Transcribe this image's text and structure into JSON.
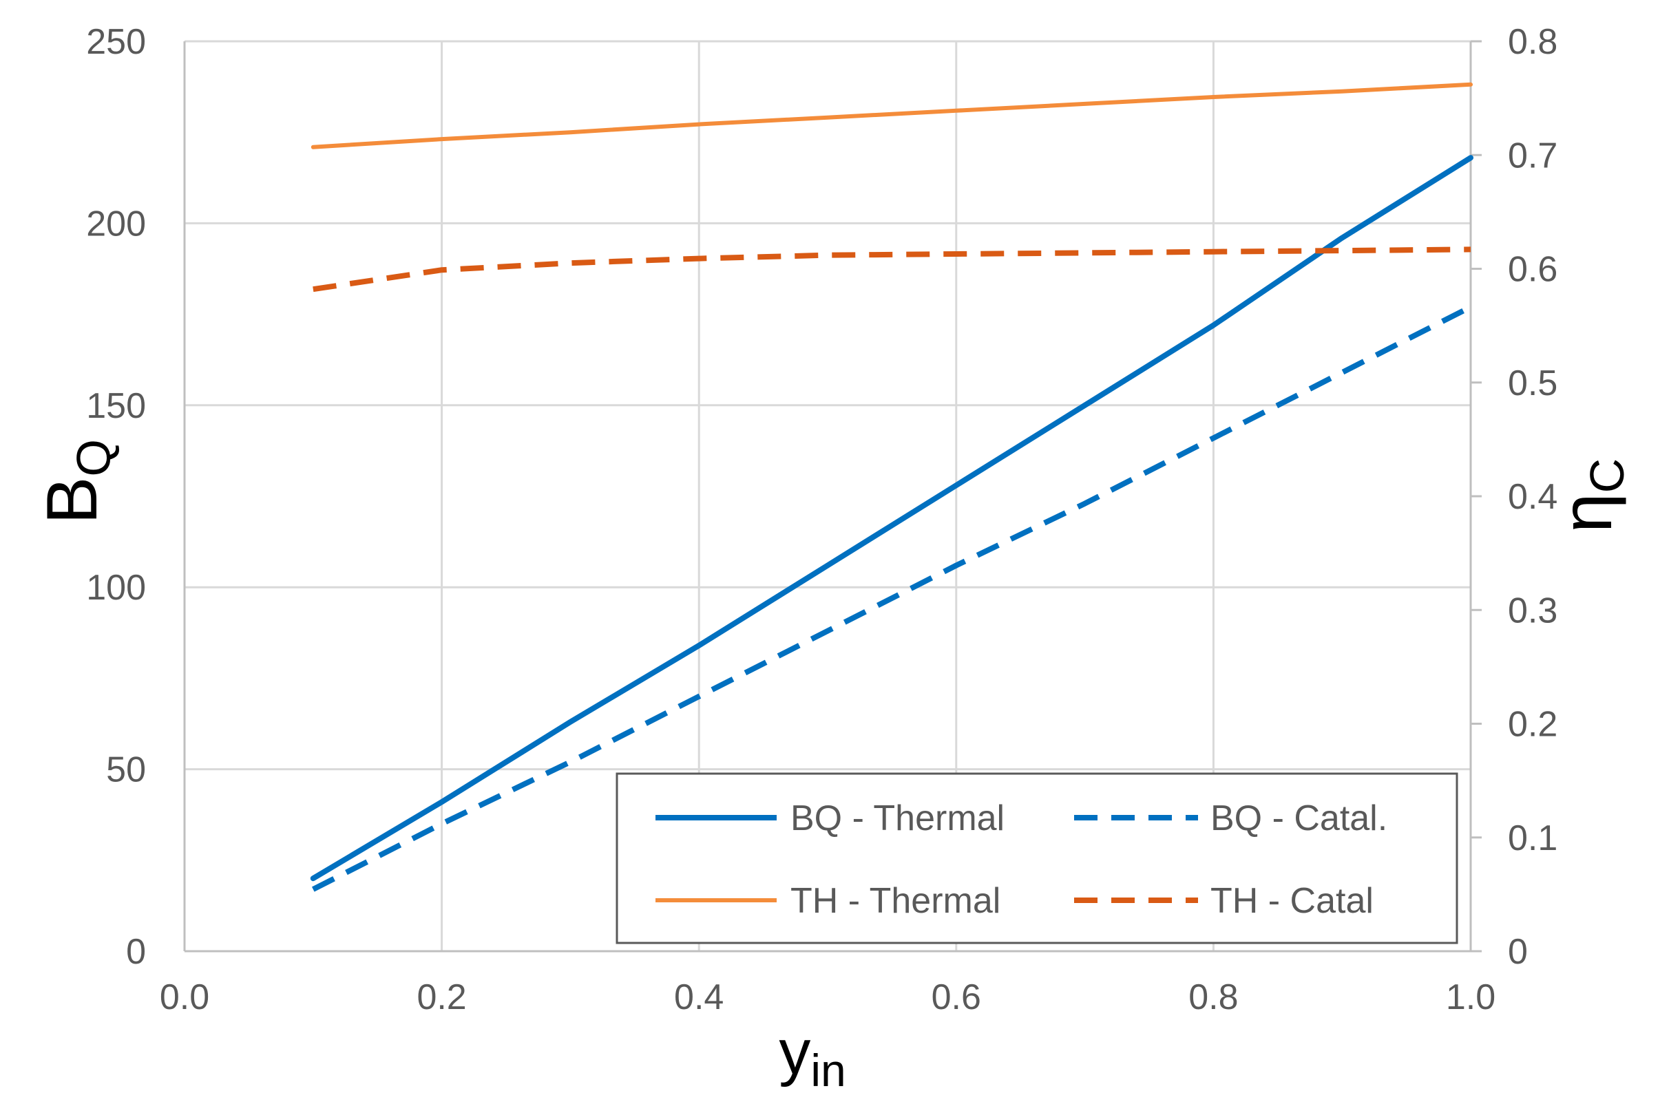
{
  "chart_data": {
    "type": "line",
    "title": "",
    "xlabel": {
      "main": "y",
      "sub": "in"
    },
    "ylabel_left": {
      "main": "B",
      "sub": "Q"
    },
    "ylabel_right": {
      "main": "η",
      "sub": "C"
    },
    "xlim": [
      0.0,
      1.0
    ],
    "ylim_left": [
      0,
      250
    ],
    "ylim_right": [
      0,
      0.8
    ],
    "x_ticks": [
      "0.0",
      "0.2",
      "0.4",
      "0.6",
      "0.8",
      "1.0"
    ],
    "x_tick_values": [
      0.0,
      0.2,
      0.4,
      0.6,
      0.8,
      1.0
    ],
    "y_left_ticks": [
      "0",
      "50",
      "100",
      "150",
      "200",
      "250"
    ],
    "y_left_tick_values": [
      0,
      50,
      100,
      150,
      200,
      250
    ],
    "y_right_ticks": [
      "0",
      "0.1",
      "0.2",
      "0.3",
      "0.4",
      "0.5",
      "0.6",
      "0.7",
      "0.8"
    ],
    "y_right_tick_values": [
      0,
      0.1,
      0.2,
      0.3,
      0.4,
      0.5,
      0.6,
      0.7,
      0.8
    ],
    "grid": true,
    "legend_position": "bottom-right",
    "series": [
      {
        "name": "BQ - Thermal",
        "axis": "left",
        "color": "#0070C0",
        "dash": "solid",
        "weight": "thick",
        "x": [
          0.1,
          0.2,
          0.3,
          0.4,
          0.5,
          0.6,
          0.7,
          0.8,
          0.9,
          1.0
        ],
        "y": [
          20,
          41,
          63,
          84,
          106,
          128,
          150,
          172,
          196,
          218
        ]
      },
      {
        "name": "BQ - Catal.",
        "axis": "left",
        "color": "#0070C0",
        "dash": "dashed",
        "weight": "thick",
        "x": [
          0.1,
          0.2,
          0.3,
          0.4,
          0.5,
          0.6,
          0.7,
          0.8,
          0.9,
          1.0
        ],
        "y": [
          17,
          35,
          52,
          70,
          88,
          106,
          123,
          141,
          159,
          177
        ]
      },
      {
        "name": "TH - Thermal",
        "axis": "right",
        "color": "#F48C3A",
        "dash": "solid",
        "weight": "medium",
        "x": [
          0.1,
          0.2,
          0.3,
          0.4,
          0.5,
          0.6,
          0.7,
          0.8,
          0.9,
          1.0
        ],
        "y": [
          0.707,
          0.714,
          0.72,
          0.727,
          0.733,
          0.739,
          0.745,
          0.751,
          0.756,
          0.762
        ]
      },
      {
        "name": "TH - Catal",
        "axis": "right",
        "color": "#D95A14",
        "dash": "dashed",
        "weight": "thick",
        "x": [
          0.1,
          0.2,
          0.3,
          0.4,
          0.5,
          0.6,
          0.7,
          0.8,
          0.9,
          1.0
        ],
        "y": [
          0.582,
          0.599,
          0.605,
          0.609,
          0.612,
          0.613,
          0.614,
          0.615,
          0.616,
          0.617
        ]
      }
    ]
  }
}
